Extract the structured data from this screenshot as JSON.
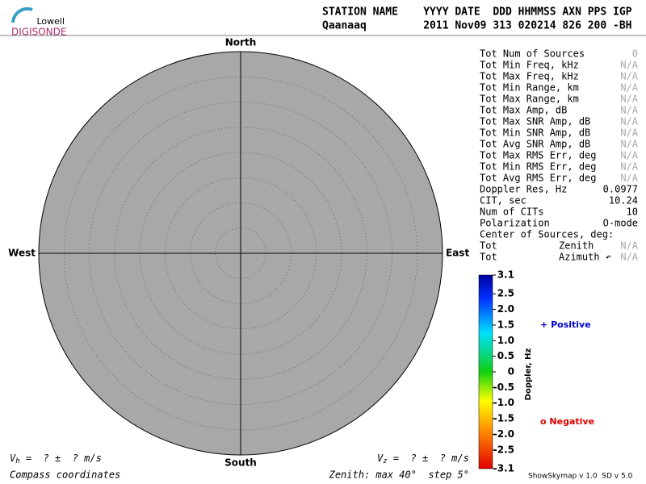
{
  "logo": {
    "top": "Lowell",
    "bottom": "DIGISONDE"
  },
  "header": {
    "row1": "STATION NAME    YYYY DATE  DDD HHMMSS AXN PPS IGP",
    "row2": "Qaanaaq         2011 Nov09 313 020214 826 200 -BH"
  },
  "chart_data": {
    "type": "skymap",
    "directions": {
      "north": "North",
      "south": "South",
      "east": "East",
      "west": "West"
    },
    "colorbar": {
      "label": "Doppler, Hz",
      "clim": [
        -3.1,
        3.1
      ],
      "ticks": [
        3.1,
        2.5,
        {
          "value": 2,
          "label": "2.0"
        },
        1.5,
        {
          "value": 1,
          "label": "1.0"
        },
        0.5,
        0,
        -0.5,
        {
          "value": -1,
          "label": "-1.0"
        },
        -1.5,
        {
          "value": -2,
          "label": "-2.0"
        },
        -2.5,
        -3.1
      ]
    },
    "legend": {
      "positive": {
        "symbol": "+",
        "label": "Positive",
        "color": "#0000cc"
      },
      "negative": {
        "symbol": "o",
        "label": "Negative",
        "color": "#dd0000"
      }
    },
    "zenith_note": "Zenith: max 40°  step 5°",
    "coordinates": "Compass coordinates"
  },
  "stats": [
    {
      "label": "Tot Num of Sources",
      "value": "0",
      "value_color": "#aaaaaa"
    },
    {
      "label": "Tot Min Freq, kHz",
      "value": "N/A",
      "value_color": "#aaaaaa"
    },
    {
      "label": "Tot Max Freq, kHz",
      "value": "N/A",
      "value_color": "#aaaaaa"
    },
    {
      "label": "Tot Min Range, km",
      "value": "N/A",
      "value_color": "#aaaaaa"
    },
    {
      "label": "Tot Max Range, km",
      "value": "N/A",
      "value_color": "#aaaaaa"
    },
    {
      "label": "Tot Max Amp, dB",
      "value": "N/A",
      "value_color": "#aaaaaa"
    },
    {
      "label": "Tot Max SNR Amp, dB",
      "value": "N/A",
      "value_color": "#aaaaaa"
    },
    {
      "label": "Tot Min SNR Amp, dB",
      "value": "N/A",
      "value_color": "#aaaaaa"
    },
    {
      "label": "Tot Avg SNR Amp, dB",
      "value": "N/A",
      "value_color": "#aaaaaa"
    },
    {
      "label": "Tot Max RMS Err, deg",
      "value": "N/A",
      "value_color": "#aaaaaa"
    },
    {
      "label": "Tot Min RMS Err, deg",
      "value": "N/A",
      "value_color": "#aaaaaa"
    },
    {
      "label": "Tot Avg RMS Err, deg",
      "value": "N/A",
      "value_color": "#aaaaaa"
    },
    {
      "label": "Doppler Res, Hz",
      "value": "0.0977",
      "value_color": "#000000"
    },
    {
      "label": "CIT, sec",
      "value": "10.24",
      "value_color": "#000000"
    },
    {
      "label": "Num of CITs",
      "value": "10",
      "value_color": "#000000"
    },
    {
      "label": "Polarization",
      "value": "O-mode",
      "value_color": "#000000"
    },
    {
      "label": "Center of Sources, deg:"
    },
    {
      "label": "Tot",
      "middle": "Zenith",
      "value": "N/A",
      "value_color": "#aaaaaa"
    },
    {
      "label": "Tot",
      "middle": "Azimuth ↶",
      "value": "N/A",
      "value_color": "#aaaaaa"
    }
  ],
  "velocity": {
    "vh": {
      "symbol": "V",
      "sub": "h",
      "text": " =  ? ±  ? m/s"
    },
    "vz": {
      "symbol": "V",
      "sub": "z",
      "text": " =  ? ±  ? m/s"
    }
  },
  "footer": "ShowSkymap v 1.0  SD v 5.0"
}
